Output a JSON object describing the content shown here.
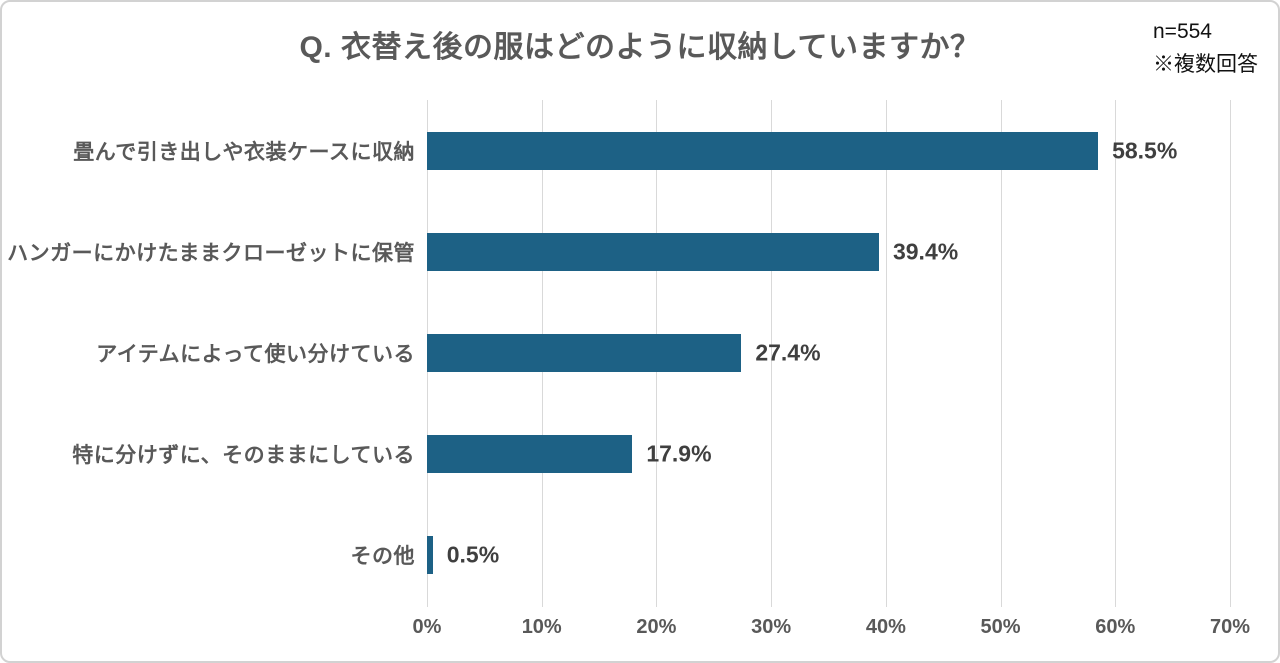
{
  "title": "Q. 衣替え後の服はどのように収納していますか？",
  "notes": {
    "sample_size": "n=554",
    "multi_answer": "※複数回答"
  },
  "chart_data": {
    "type": "bar",
    "orientation": "horizontal",
    "title": "Q. 衣替え後の服はどのように収納していますか？",
    "categories": [
      "畳んで引き出しや衣装ケースに収納",
      "ハンガーにかけたままクローゼットに保管",
      "アイテムによって使い分けている",
      "特に分けずに、そのままにしている",
      "その他"
    ],
    "values": [
      58.5,
      39.4,
      27.4,
      17.9,
      0.5
    ],
    "value_labels": [
      "58.5%",
      "39.4%",
      "27.4%",
      "17.9%",
      "0.5%"
    ],
    "xlim": [
      0,
      70
    ],
    "x_ticks": [
      "0%",
      "10%",
      "20%",
      "30%",
      "40%",
      "50%",
      "60%",
      "70%"
    ],
    "grid": true,
    "bar_color": "#1d6185",
    "grid_color": "#d9d9d9",
    "label_color": "#595959",
    "value_label_color": "#3f3f3f"
  }
}
